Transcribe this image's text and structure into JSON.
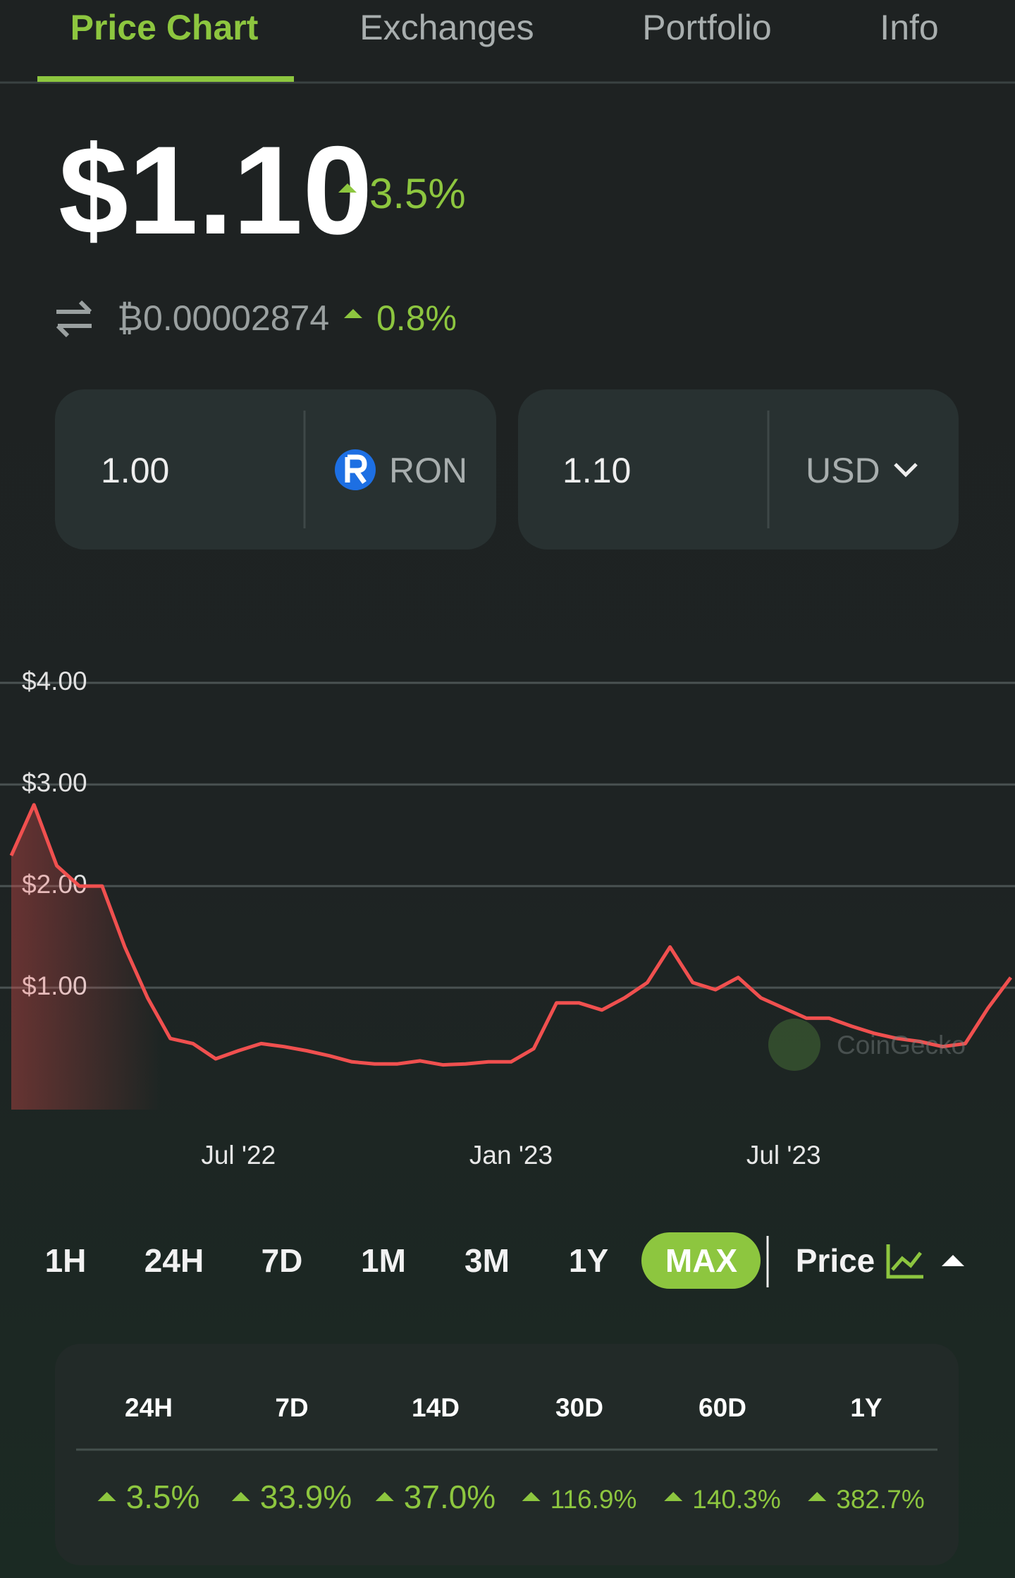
{
  "tabs": {
    "items": [
      "Price Chart",
      "Exchanges",
      "Portfolio",
      "Info"
    ],
    "active": 0
  },
  "price": {
    "value": "$1.10",
    "change": "3.5%"
  },
  "btc_price": {
    "value": "₿0.00002874",
    "change": "0.8%"
  },
  "converter": {
    "amount": "1.00",
    "coin": "RON",
    "converted": "1.10",
    "currency": "USD"
  },
  "chart_data": {
    "type": "line",
    "categories": [
      null,
      null,
      null,
      null,
      null,
      null,
      null,
      null,
      null,
      null,
      "Jul '22",
      null,
      null,
      null,
      null,
      null,
      null,
      null,
      null,
      null,
      null,
      null,
      "Jan '23",
      null,
      null,
      null,
      null,
      null,
      null,
      null,
      null,
      null,
      null,
      null,
      "Jul '23",
      null,
      null,
      null,
      null,
      null,
      null,
      null,
      null,
      null,
      null
    ],
    "series": [
      {
        "color": "#f0504f",
        "values": [
          2.3,
          2.8,
          2.2,
          2.0,
          2.0,
          1.4,
          0.9,
          0.5,
          0.45,
          0.3,
          0.38,
          0.45,
          0.42,
          0.38,
          0.33,
          0.27,
          0.25,
          0.25,
          0.28,
          0.24,
          0.25,
          0.27,
          0.27,
          0.4,
          0.85,
          0.85,
          0.78,
          0.9,
          1.05,
          1.4,
          1.05,
          0.98,
          1.1,
          0.9,
          0.8,
          0.7,
          0.7,
          0.62,
          0.55,
          0.5,
          0.47,
          0.42,
          0.45,
          0.8,
          1.1
        ]
      }
    ],
    "ylim": [
      -0.2,
      4.5
    ],
    "yticks": [
      {
        "value": 1,
        "label": "$1.00"
      },
      {
        "value": 2,
        "label": "$2.00"
      },
      {
        "value": 3,
        "label": "$3.00"
      },
      {
        "value": 4,
        "label": "$4.00"
      }
    ],
    "grid": true
  },
  "watermark": "CoinGecko",
  "range_buttons": {
    "items": [
      "1H",
      "24H",
      "7D",
      "1M",
      "3M",
      "1Y",
      "MAX"
    ],
    "active": 6,
    "mode": "Price"
  },
  "stats": {
    "headers": [
      "24H",
      "7D",
      "14D",
      "30D",
      "60D",
      "1Y"
    ],
    "values": [
      "3.5%",
      "33.9%",
      "37.0%",
      "116.9%",
      "140.3%",
      "382.7%"
    ]
  }
}
